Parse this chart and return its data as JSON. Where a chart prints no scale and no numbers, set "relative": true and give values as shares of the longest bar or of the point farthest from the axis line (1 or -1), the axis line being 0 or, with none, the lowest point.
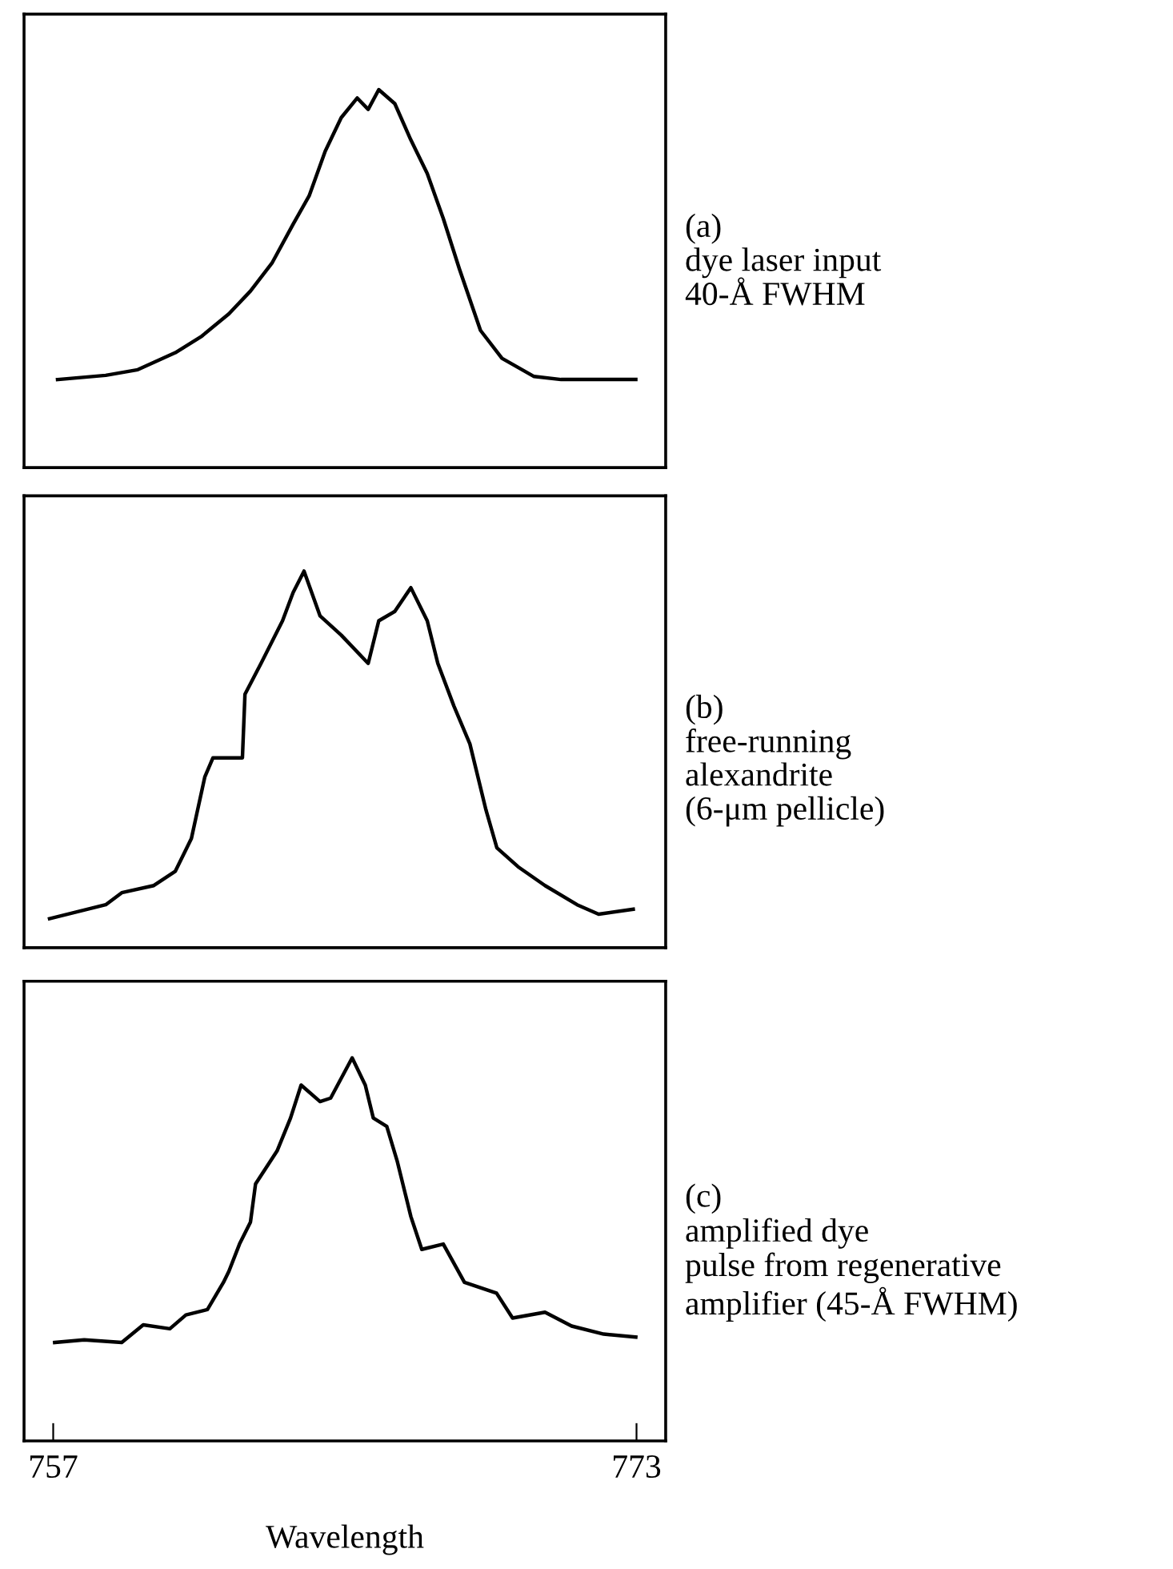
{
  "chart_data": [
    {
      "type": "line",
      "relative": true,
      "xlim": [
        756.2,
        773.8
      ],
      "tick_labels": false,
      "annotations": [
        "(a)",
        "dye laser input",
        "40-Å FWHM"
      ],
      "series": [
        {
          "color": "#000000",
          "x": [
            757.12,
            758.44,
            759.32,
            760.35,
            761.08,
            761.82,
            762.41,
            763.0,
            763.58,
            764.02,
            764.46,
            764.9,
            765.34,
            765.64,
            765.93,
            766.37,
            766.81,
            767.26,
            767.7,
            768.14,
            768.72,
            769.31,
            770.19,
            770.93,
            772.98
          ],
          "values": [
            0.233,
            0.244,
            0.259,
            0.304,
            0.348,
            0.407,
            0.467,
            0.541,
            0.644,
            0.719,
            0.837,
            0.926,
            0.978,
            0.948,
            1.0,
            0.963,
            0.867,
            0.778,
            0.659,
            0.526,
            0.363,
            0.289,
            0.241,
            0.233,
            0.233
          ]
        }
      ]
    },
    {
      "type": "line",
      "relative": true,
      "xlim": [
        756.2,
        773.8
      ],
      "tick_labels": false,
      "annotations": [
        "(b)",
        "free-running",
        "alexandrite",
        "(6-μm pellicle)"
      ],
      "series": [
        {
          "color": "#000000",
          "x": [
            756.9,
            758.44,
            758.88,
            759.76,
            760.35,
            760.79,
            761.16,
            761.38,
            762.19,
            762.26,
            762.7,
            763.29,
            763.58,
            763.88,
            764.32,
            764.9,
            765.64,
            765.93,
            766.37,
            766.81,
            767.26,
            767.55,
            767.99,
            768.43,
            768.87,
            769.17,
            769.75,
            770.49,
            771.37,
            771.96,
            772.91
          ],
          "values": [
            0.077,
            0.114,
            0.146,
            0.165,
            0.203,
            0.29,
            0.454,
            0.504,
            0.504,
            0.673,
            0.755,
            0.868,
            0.943,
            1.0,
            0.881,
            0.83,
            0.755,
            0.868,
            0.893,
            0.956,
            0.868,
            0.755,
            0.642,
            0.541,
            0.366,
            0.265,
            0.215,
            0.165,
            0.114,
            0.089,
            0.102
          ]
        }
      ]
    },
    {
      "type": "line",
      "relative": true,
      "xlim": [
        756.2,
        773.8
      ],
      "xticks": [
        757,
        773
      ],
      "tick_labels": "x",
      "xlabel": "Wavelength",
      "annotations": [
        "(c)",
        "amplified dye",
        "pulse from regenerative",
        "amplifier (45-Å FWHM)"
      ],
      "series": [
        {
          "color": "#000000",
          "x": [
            757.04,
            757.85,
            758.88,
            759.47,
            760.2,
            760.64,
            761.23,
            761.67,
            761.82,
            762.11,
            762.41,
            762.55,
            763.14,
            763.51,
            763.8,
            764.32,
            764.61,
            765.2,
            765.56,
            765.78,
            766.15,
            766.44,
            766.81,
            767.11,
            767.7,
            768.28,
            769.16,
            769.6,
            770.49,
            771.22,
            772.1,
            772.98
          ],
          "values": [
            0.257,
            0.264,
            0.257,
            0.303,
            0.293,
            0.329,
            0.343,
            0.414,
            0.443,
            0.514,
            0.571,
            0.671,
            0.757,
            0.843,
            0.929,
            0.886,
            0.895,
            1.0,
            0.929,
            0.843,
            0.821,
            0.729,
            0.586,
            0.5,
            0.514,
            0.414,
            0.386,
            0.321,
            0.336,
            0.3,
            0.279,
            0.271
          ]
        }
      ]
    }
  ]
}
